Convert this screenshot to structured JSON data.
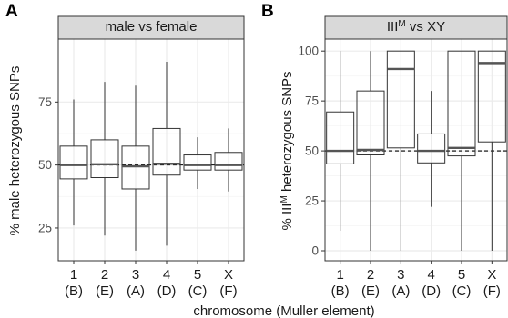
{
  "figure": {
    "xlabel": "chromosome (Muller element)"
  },
  "chart_data": [
    {
      "type": "boxplot",
      "panel_label": "A",
      "title": "male vs female",
      "ylabel": "% male heterozygous SNPs",
      "ylim": [
        12,
        100
      ],
      "yticks": [
        25,
        50,
        75
      ],
      "reference_line": 50,
      "grid": true,
      "categories": [
        "1",
        "2",
        "3",
        "4",
        "5",
        "X"
      ],
      "muller": [
        "(B)",
        "(E)",
        "(A)",
        "(D)",
        "(C)",
        "(F)"
      ],
      "boxes": [
        {
          "whisker_low": 26,
          "q1": 44.5,
          "median": 50,
          "q3": 57.5,
          "whisker_high": 76
        },
        {
          "whisker_low": 22,
          "q1": 45,
          "median": 50.3,
          "q3": 60,
          "whisker_high": 83
        },
        {
          "whisker_low": 16,
          "q1": 40.5,
          "median": 49.5,
          "q3": 57.5,
          "whisker_high": 81.5
        },
        {
          "whisker_low": 18,
          "q1": 46,
          "median": 50.5,
          "q3": 64.5,
          "whisker_high": 91
        },
        {
          "whisker_low": 40.5,
          "q1": 48,
          "median": 50,
          "q3": 54,
          "whisker_high": 61
        },
        {
          "whisker_low": 39.5,
          "q1": 48,
          "median": 50,
          "q3": 55,
          "whisker_high": 64.5
        }
      ]
    },
    {
      "type": "boxplot",
      "panel_label": "B",
      "title_main": "III",
      "title_sup": "M",
      "title_rest": " vs XY",
      "ylabel_main": "% III",
      "ylabel_sup": "M",
      "ylabel_rest": " heterozygous SNPs",
      "ylim": [
        -5,
        106
      ],
      "yticks": [
        0,
        25,
        50,
        75,
        100
      ],
      "reference_line": 50,
      "grid": true,
      "categories": [
        "1",
        "2",
        "3",
        "4",
        "5",
        "X"
      ],
      "muller": [
        "(B)",
        "(E)",
        "(A)",
        "(D)",
        "(C)",
        "(F)"
      ],
      "boxes": [
        {
          "whisker_low": 10,
          "q1": 43.5,
          "median": 50,
          "q3": 69.5,
          "whisker_high": 100
        },
        {
          "whisker_low": 0,
          "q1": 48,
          "median": 50.5,
          "q3": 80,
          "whisker_high": 100
        },
        {
          "whisker_low": 0,
          "q1": 51.5,
          "median": 91,
          "q3": 100,
          "whisker_high": 100
        },
        {
          "whisker_low": 22,
          "q1": 44,
          "median": 50,
          "q3": 58.5,
          "whisker_high": 80
        },
        {
          "whisker_low": 0,
          "q1": 47.5,
          "median": 51.5,
          "q3": 100,
          "whisker_high": 100
        },
        {
          "whisker_low": 0,
          "q1": 54.5,
          "median": 94,
          "q3": 100,
          "whisker_high": 100
        }
      ]
    }
  ],
  "colors": {
    "strip_fill": "#d9d9d9",
    "strip_border": "#333333",
    "panel_border": "#333333",
    "grid_major": "#ebebeb",
    "grid_minor": "#f5f5f5",
    "box_line": "#333333",
    "median": "#555555",
    "reference": "#000000"
  }
}
